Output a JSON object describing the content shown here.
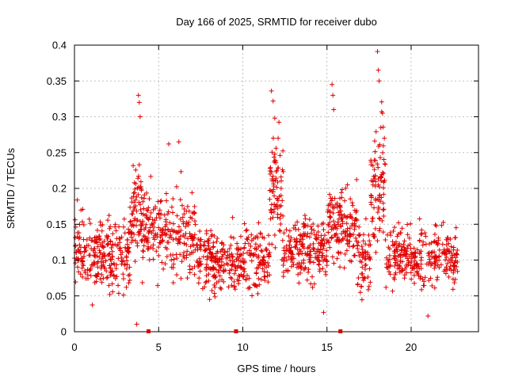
{
  "chart_data": {
    "type": "scatter",
    "title": "Day 166 of 2025, SRMTID for receiver dubo",
    "xlabel": "GPS time / hours",
    "ylabel": "SRMTID / TECUs",
    "xlim": [
      0,
      24
    ],
    "ylim": [
      0,
      0.4
    ],
    "xticks": [
      0,
      5,
      10,
      15,
      20
    ],
    "xtick_labels": [
      "0",
      "5",
      "10",
      "15",
      "20"
    ],
    "yticks": [
      0,
      0.05,
      0.1,
      0.15,
      0.2,
      0.25,
      0.3,
      0.35,
      0.4
    ],
    "ytick_labels": [
      "0",
      "0.05",
      "0.1",
      "0.15",
      "0.2",
      "0.25",
      "0.3",
      "0.35",
      "0.4"
    ],
    "grid": true,
    "marker": "+",
    "color": "#e00000",
    "axis_markers_x": [
      4.4,
      9.6,
      15.8
    ],
    "series": [
      {
        "name": "SRMTID",
        "segments": [
          {
            "x_start": 0.0,
            "x_end": 3.3,
            "y_mean": 0.11,
            "y_spread": 0.04,
            "count": 260
          },
          {
            "x_start": 3.3,
            "x_end": 4.0,
            "y_mean": 0.17,
            "y_spread": 0.05,
            "count": 70
          },
          {
            "x_start": 4.0,
            "x_end": 7.2,
            "y_mean": 0.14,
            "y_spread": 0.05,
            "count": 230
          },
          {
            "x_start": 7.2,
            "x_end": 11.6,
            "y_mean": 0.1,
            "y_spread": 0.035,
            "count": 320
          },
          {
            "x_start": 11.6,
            "x_end": 12.4,
            "y_mean": 0.19,
            "y_spread": 0.06,
            "count": 80
          },
          {
            "x_start": 12.4,
            "x_end": 15.0,
            "y_mean": 0.115,
            "y_spread": 0.035,
            "count": 200
          },
          {
            "x_start": 15.0,
            "x_end": 16.8,
            "y_mean": 0.15,
            "y_spread": 0.045,
            "count": 150
          },
          {
            "x_start": 16.8,
            "x_end": 17.6,
            "y_mean": 0.1,
            "y_spread": 0.035,
            "count": 60
          },
          {
            "x_start": 17.6,
            "x_end": 18.5,
            "y_mean": 0.2,
            "y_spread": 0.07,
            "count": 90
          },
          {
            "x_start": 18.5,
            "x_end": 22.8,
            "y_mean": 0.105,
            "y_spread": 0.035,
            "count": 300
          }
        ],
        "peaks": [
          {
            "x": 3.7,
            "y": 0.0105
          },
          {
            "x": 3.8,
            "y": 0.33
          },
          {
            "x": 3.85,
            "y": 0.32
          },
          {
            "x": 3.9,
            "y": 0.3
          },
          {
            "x": 6.2,
            "y": 0.265
          },
          {
            "x": 5.6,
            "y": 0.262
          },
          {
            "x": 11.7,
            "y": 0.336
          },
          {
            "x": 11.8,
            "y": 0.322
          },
          {
            "x": 11.9,
            "y": 0.298
          },
          {
            "x": 12.1,
            "y": 0.27
          },
          {
            "x": 15.3,
            "y": 0.345
          },
          {
            "x": 15.35,
            "y": 0.33
          },
          {
            "x": 15.4,
            "y": 0.31
          },
          {
            "x": 14.8,
            "y": 0.027
          },
          {
            "x": 18.0,
            "y": 0.391
          },
          {
            "x": 18.05,
            "y": 0.365
          },
          {
            "x": 18.1,
            "y": 0.35
          },
          {
            "x": 18.3,
            "y": 0.305
          },
          {
            "x": 18.2,
            "y": 0.285
          },
          {
            "x": 21.0,
            "y": 0.022
          }
        ]
      }
    ]
  }
}
